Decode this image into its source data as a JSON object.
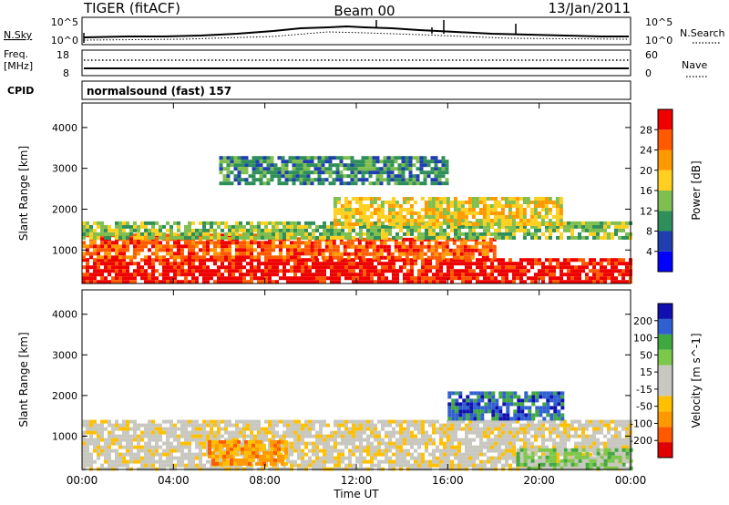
{
  "header": {
    "radar": "TIGER (fitACF)",
    "beam": "Beam 00",
    "date": "13/Jan/2011"
  },
  "status_panels": {
    "nsky_label": "N.Sky",
    "nsearch_label": "N.Search",
    "noise_ticks": [
      "10^5",
      "10^0"
    ],
    "freq_label": "Freq.",
    "freq_unit": "[MHz]",
    "freq_ticks": [
      "18",
      "8"
    ],
    "nave_label": "Nave",
    "nave_ticks": [
      "60",
      "0"
    ],
    "cpid_label": "CPID",
    "cpid_text": "normalsound (fast) 157"
  },
  "chart_data": [
    {
      "type": "heatmap",
      "name": "power",
      "ylabel": "Slant Range [km]",
      "xlabel": "Time UT",
      "x_ticks": [
        "00:00",
        "04:00",
        "08:00",
        "12:00",
        "16:00",
        "20:00",
        "00:00"
      ],
      "x_range_hours": [
        0,
        24
      ],
      "y_ticks": [
        1000,
        2000,
        3000,
        4000
      ],
      "ylim": [
        180,
        4600
      ],
      "colorbar": {
        "label": "Power [dB]",
        "ticks": [
          "28",
          "24",
          "20",
          "16",
          "12",
          "8",
          "4"
        ],
        "colors": [
          "#0000ff",
          "#1f3fb0",
          "#2f8f5a",
          "#7fbf4f",
          "#ffd020",
          "#ff9900",
          "#ff5a00",
          "#ee0000"
        ]
      },
      "echo_regions": [
        {
          "t0": 0.0,
          "t1": 24.0,
          "r0": 180,
          "r1": 800,
          "level": 7
        },
        {
          "t0": 0.0,
          "t1": 10.0,
          "r0": 800,
          "r1": 1400,
          "level": 6
        },
        {
          "t0": 10.0,
          "t1": 18.0,
          "r0": 800,
          "r1": 1300,
          "level": 6
        },
        {
          "t0": 0.0,
          "t1": 24.0,
          "r0": 1300,
          "r1": 1700,
          "level": 3
        },
        {
          "t0": 11.0,
          "t1": 21.0,
          "r0": 1600,
          "r1": 2300,
          "level": 4
        },
        {
          "t0": 6.0,
          "t1": 16.0,
          "r0": 2600,
          "r1": 3300,
          "level": 2
        }
      ]
    },
    {
      "type": "heatmap",
      "name": "velocity",
      "ylabel": "Slant Range [km]",
      "xlabel": "Time UT",
      "x_ticks": [
        "00:00",
        "04:00",
        "08:00",
        "12:00",
        "16:00",
        "20:00",
        "00:00"
      ],
      "x_range_hours": [
        0,
        24
      ],
      "y_ticks": [
        1000,
        2000,
        3000,
        4000
      ],
      "ylim": [
        180,
        4600
      ],
      "colorbar": {
        "label": "Velocity [m s^-1]",
        "ticks": [
          "200",
          "100",
          "50",
          "15",
          "-15",
          "-50",
          "-100",
          "-200"
        ],
        "colors": [
          "#e00000",
          "#ff5a00",
          "#ff9900",
          "#ffc000",
          "#c8c8c0",
          "#c8c8c0",
          "#7cc84a",
          "#3fa93f",
          "#2f5fd0",
          "#1010b0"
        ]
      },
      "echo_regions": [
        {
          "t0": 0.0,
          "t1": 24.0,
          "r0": 180,
          "r1": 1400,
          "level": 4
        },
        {
          "t0": 16.0,
          "t1": 21.0,
          "r0": 1400,
          "r1": 2100,
          "level": 8
        },
        {
          "t0": 5.5,
          "t1": 9.0,
          "r0": 300,
          "r1": 900,
          "level": 2
        },
        {
          "t0": 19.0,
          "t1": 24.0,
          "r0": 200,
          "r1": 700,
          "level": 6
        }
      ]
    }
  ]
}
